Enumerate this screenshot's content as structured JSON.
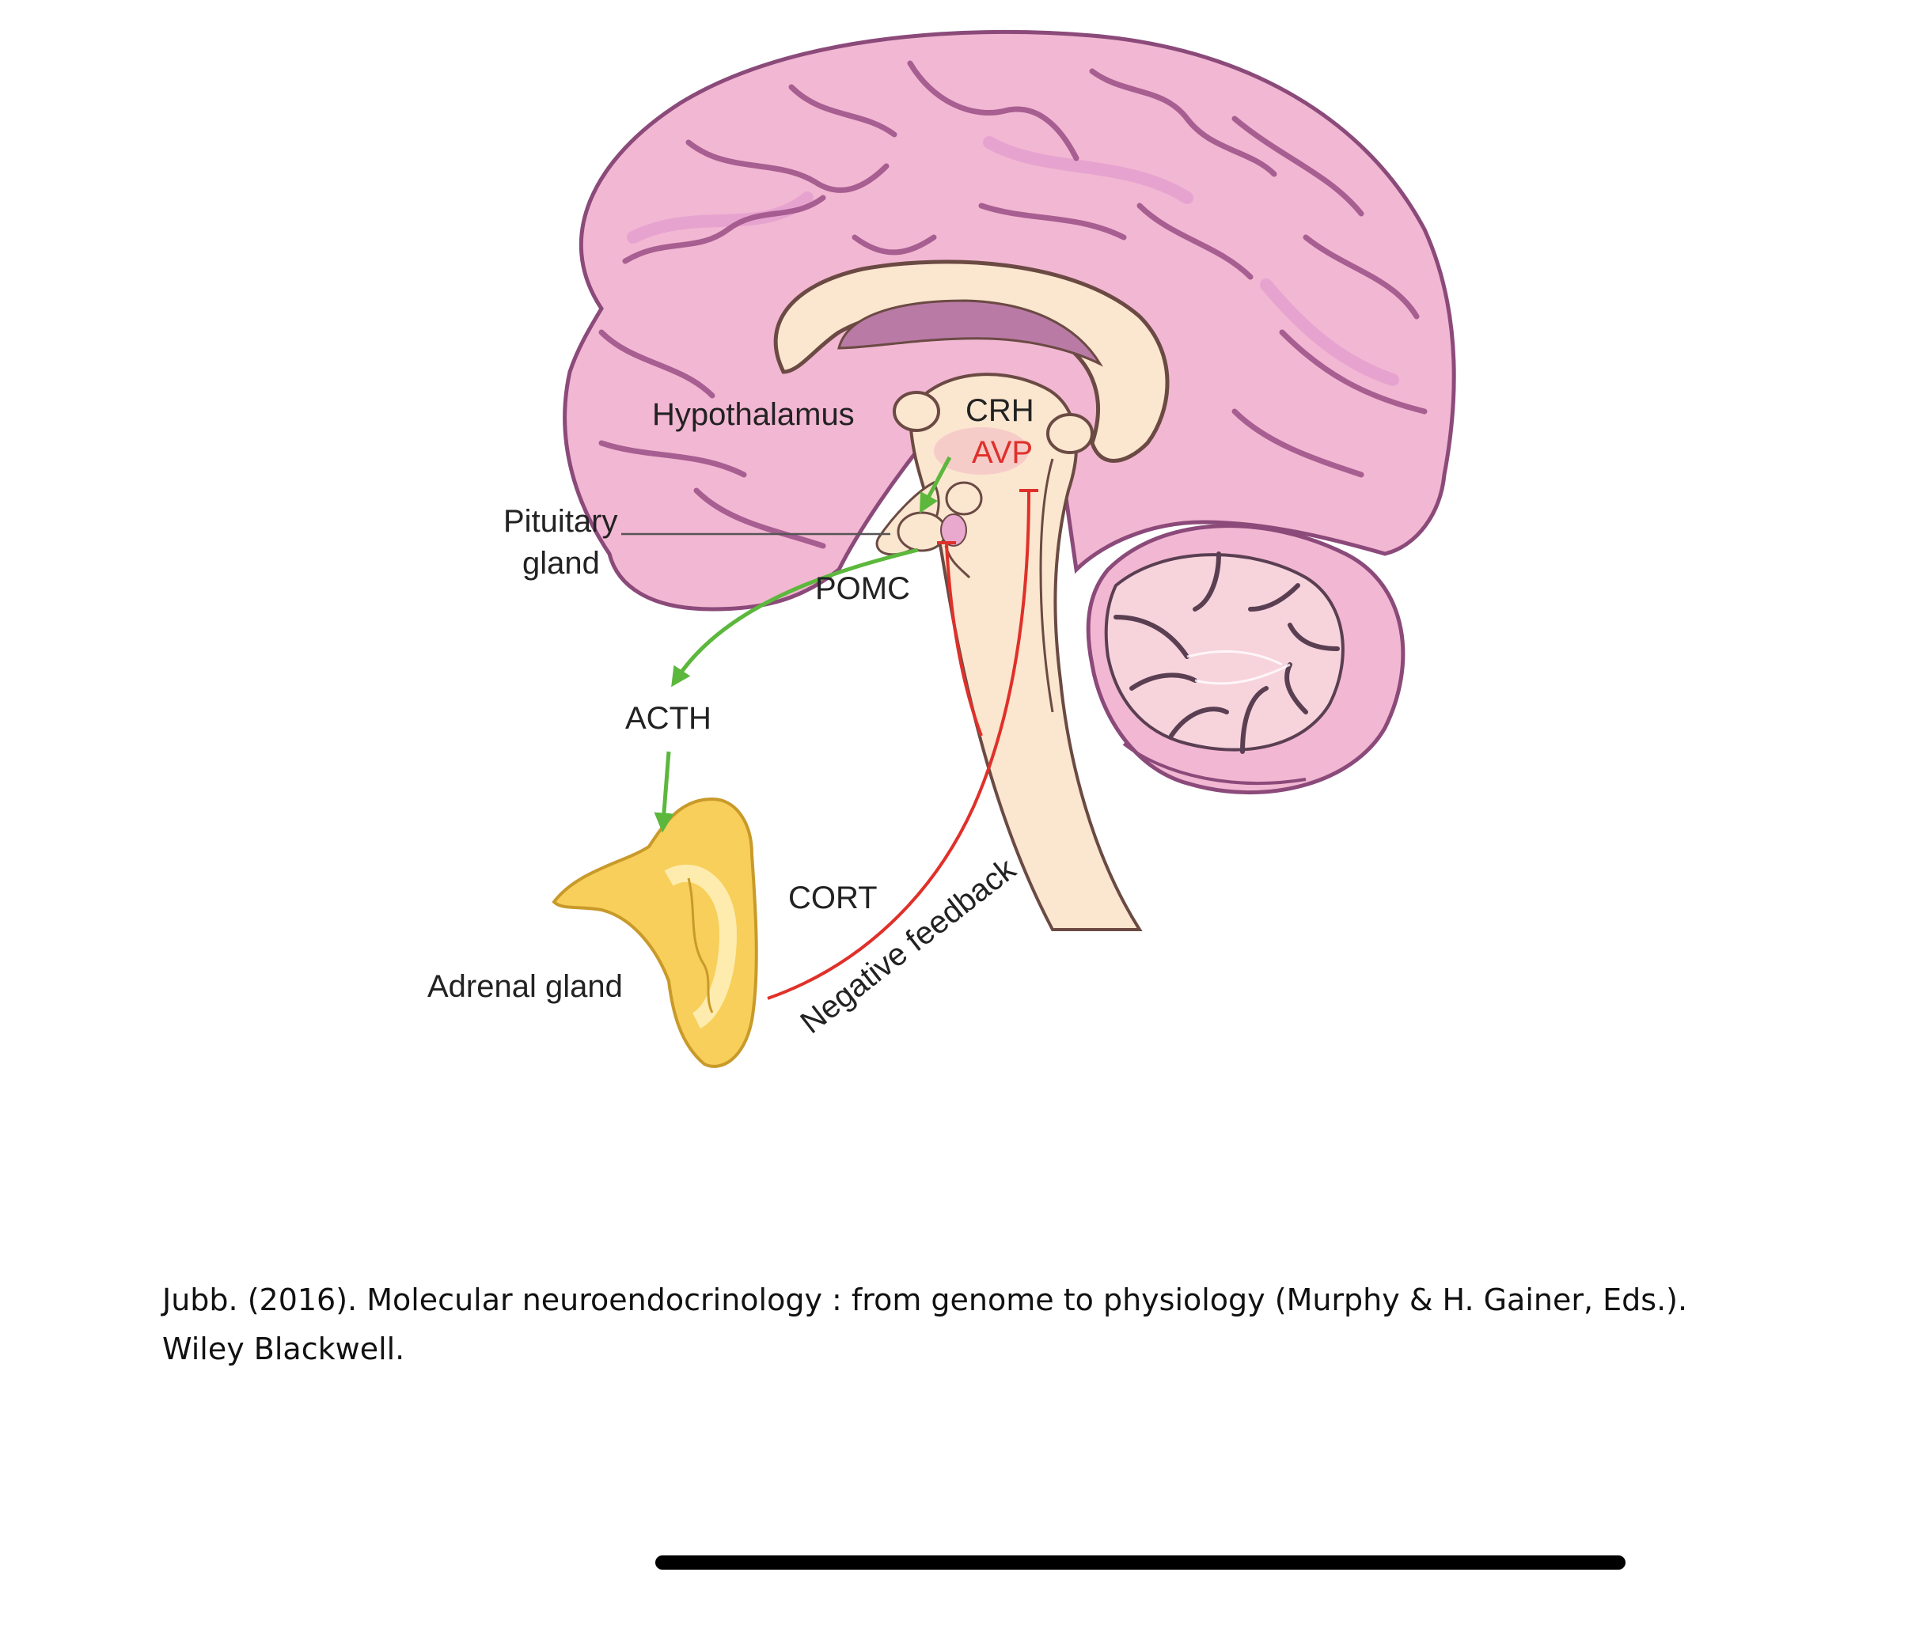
{
  "diagram": {
    "labels": {
      "hypothalamus": "Hypothalamus",
      "crh": "CRH",
      "avp": "AVP",
      "pituitary_line1": "Pituitary",
      "pituitary_line2": "gland",
      "pomc": "POMC",
      "acth": "ACTH",
      "cort": "CORT",
      "adrenal": "Adrenal gland",
      "negative_feedback": "Negative feedback"
    },
    "colors": {
      "cortex": "#f2b7d2",
      "cortex_outline": "#8b4a7a",
      "brainstem": "#fbe6cf",
      "ventricle": "#b97aa6",
      "adrenal": "#f7cf5a",
      "green_arrow": "#5cb83d",
      "red_pathway": "#e0302a"
    }
  },
  "citation": {
    "line1": "Jubb. (2016). Molecular neuroendocrinology : from genome to physiology (Murphy & H. Gainer, Eds.).",
    "line2": "Wiley Blackwell."
  }
}
